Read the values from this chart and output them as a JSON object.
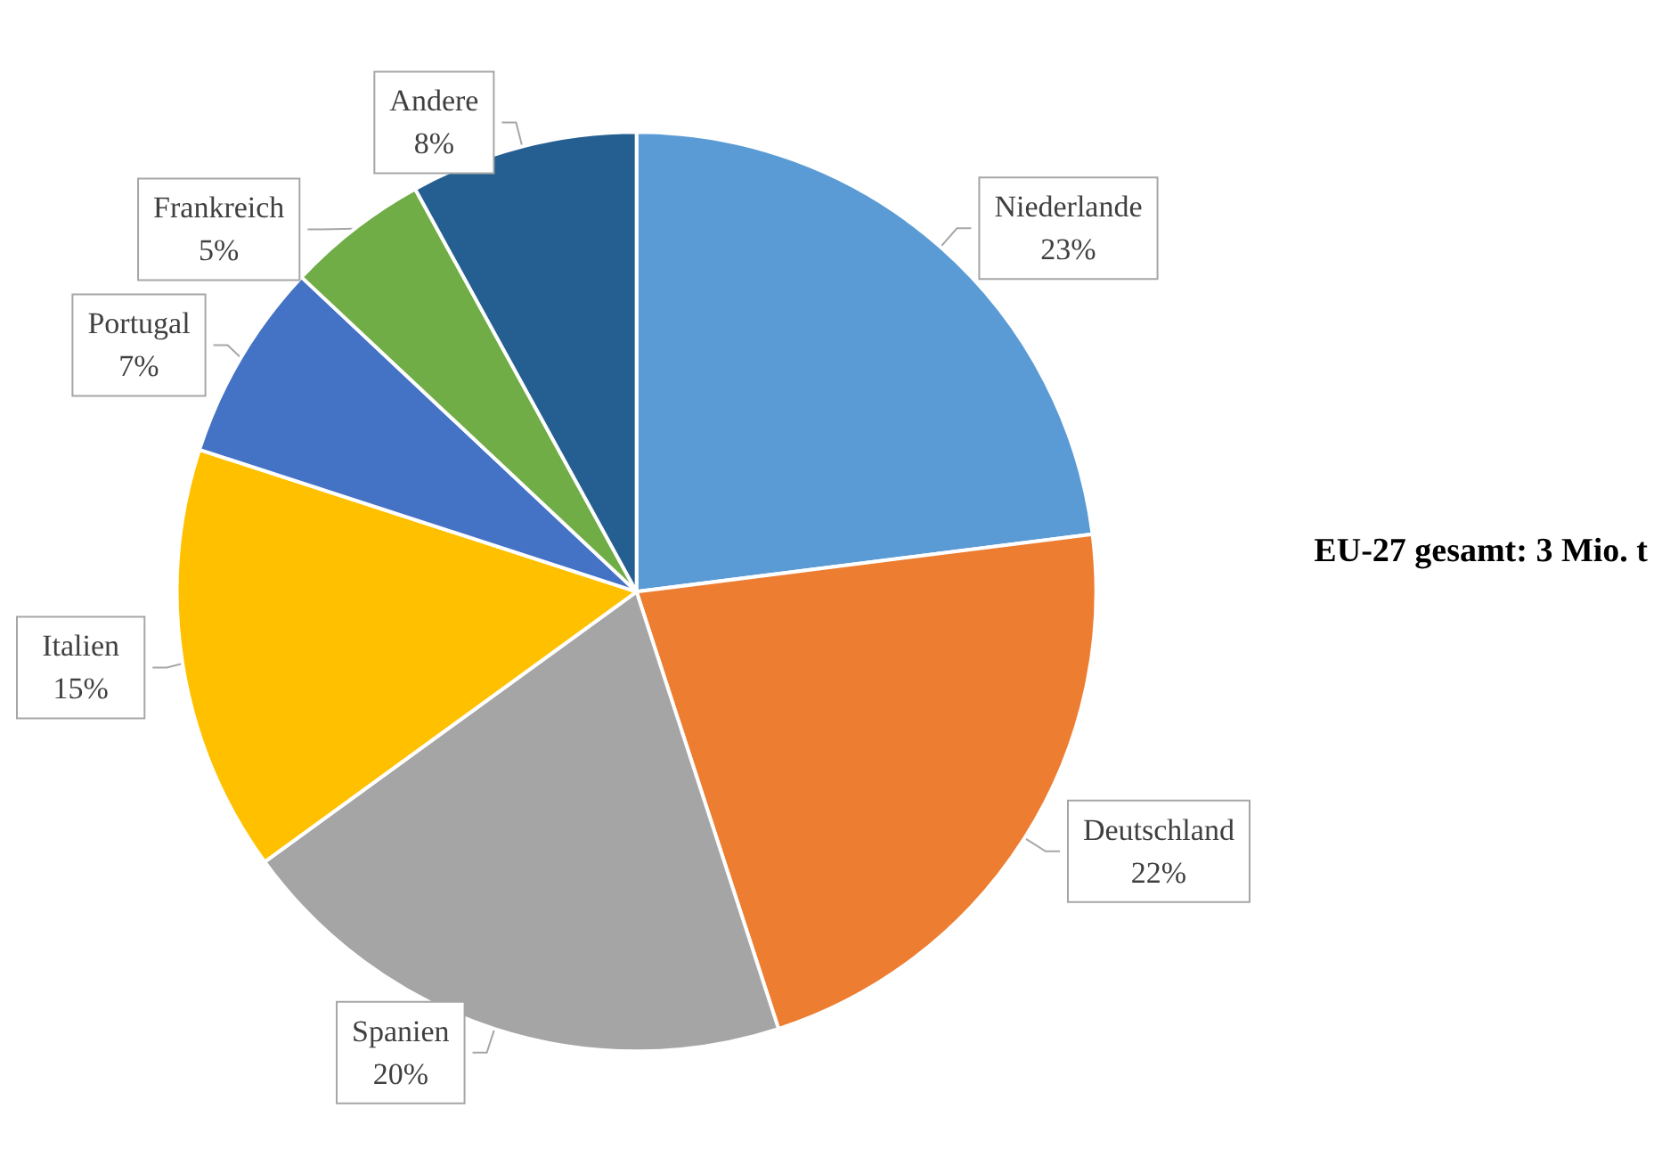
{
  "chart_data": {
    "type": "pie",
    "categories": [
      "Niederlande",
      "Deutschland",
      "Spanien",
      "Italien",
      "Portugal",
      "Frankreich",
      "Andere"
    ],
    "values": [
      23,
      22,
      20,
      15,
      7,
      5,
      8
    ],
    "colors": [
      "#5b9bd5",
      "#ed7d31",
      "#a5a5a5",
      "#ffc000",
      "#4472c4",
      "#70ad47",
      "#255e91"
    ],
    "value_labels": [
      "23%",
      "22%",
      "20%",
      "15%",
      "7%",
      "5%",
      "8%"
    ],
    "legend": false,
    "annotations": [
      "EU-27 gesamt: 3 Mio. t"
    ]
  }
}
